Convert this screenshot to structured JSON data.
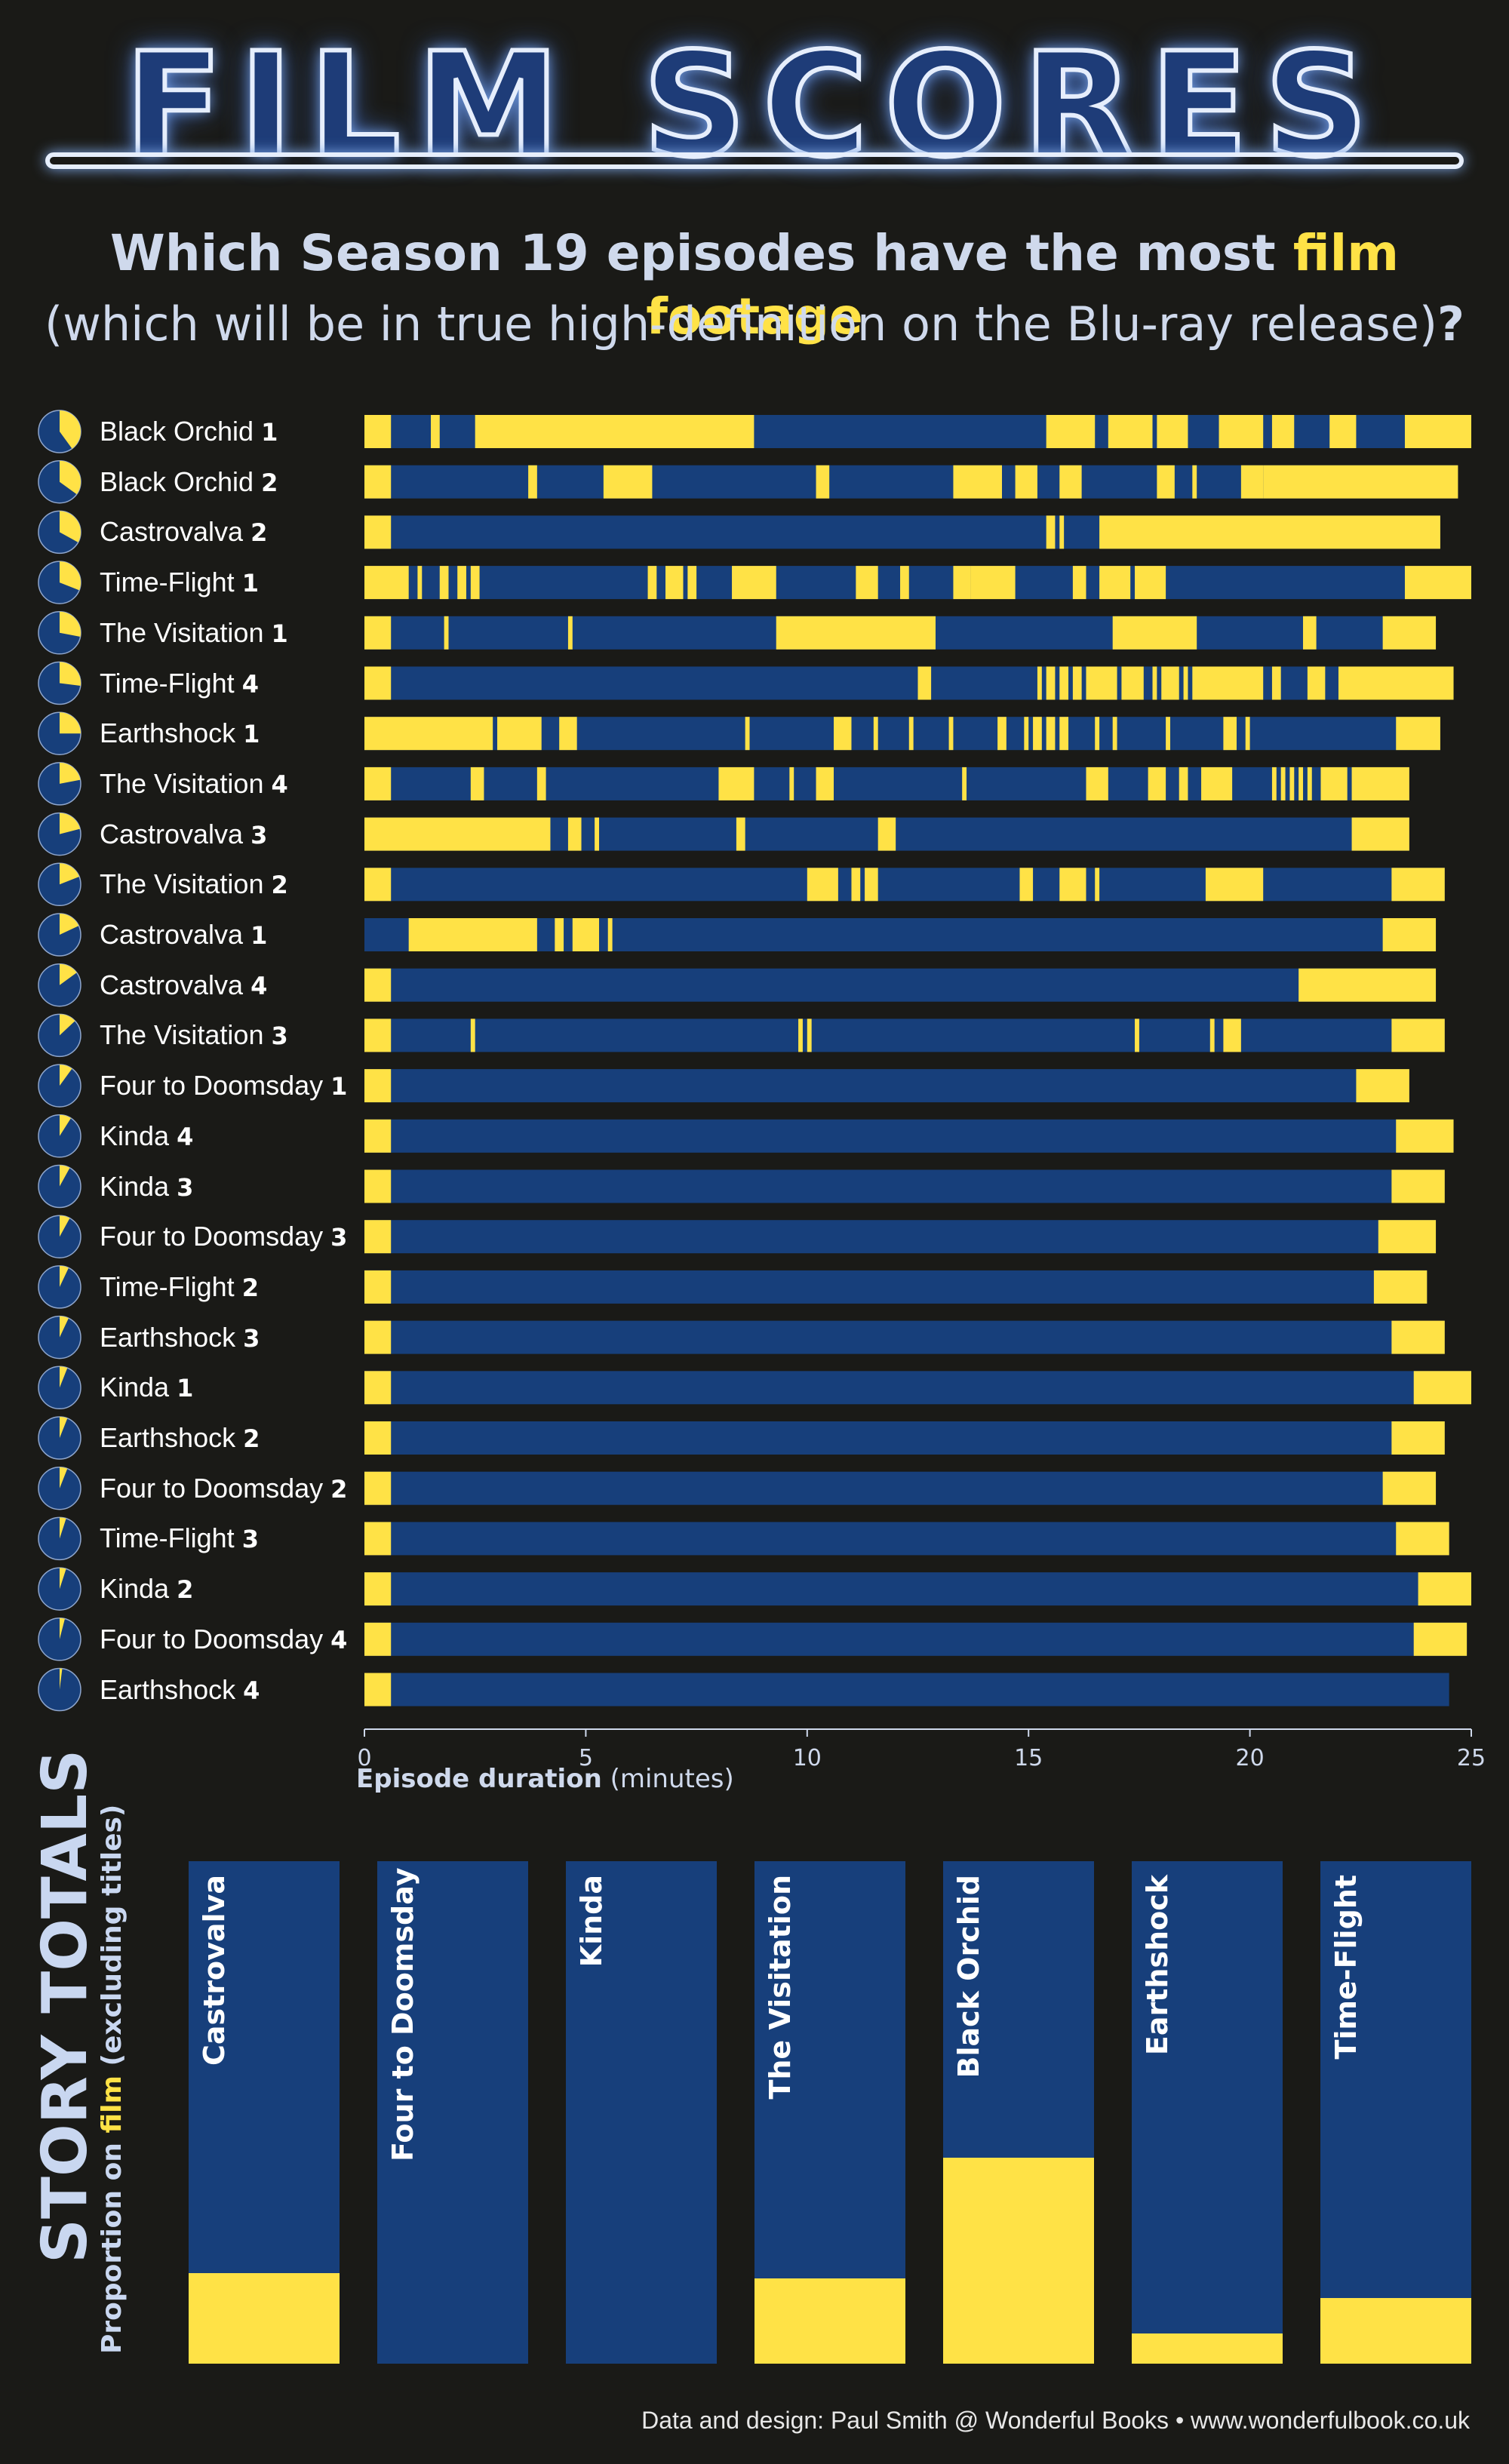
{
  "header": {
    "title": "FILM SCORES",
    "subtitle_main": "Which Season 19 episodes have the most ",
    "subtitle_highlight": "film footage",
    "subtitle_second": "(which will be in true high-definition on the Blu-ray release)",
    "subtitle_qmark": "?"
  },
  "colors": {
    "film": "#ffe246",
    "video": "#173f7b",
    "background": "#1a1a17",
    "text": "#ffffff"
  },
  "axis": {
    "title_bold": "Episode duration",
    "title_unit": "(minutes)"
  },
  "story_totals": {
    "title": "STORY TOTALS",
    "subtitle_prefix": "Proportion on ",
    "subtitle_highlight": "film",
    "subtitle_suffix": " (excluding titles)"
  },
  "footer": {
    "credits": "Data and design: Paul Smith @ Wonderful Books  •  www.wonderfulbook.co.uk"
  },
  "chart_data": [
    {
      "type": "bar",
      "title": "Which Season 19 episodes have the most film footage (which will be in true high-definition on the Blu-ray release)?",
      "xlabel": "Episode duration (minutes)",
      "xlim": [
        0,
        25
      ],
      "xticks": [
        0,
        5,
        10,
        15,
        20,
        25
      ],
      "grid": false,
      "episodes": [
        {
          "story": "Black Orchid",
          "part": "1",
          "duration": 25.0,
          "film_share": 0.4,
          "film": [
            [
              0,
              0.6
            ],
            [
              1.5,
              1.7
            ],
            [
              2.5,
              8.8
            ],
            [
              15.4,
              16.5
            ],
            [
              16.8,
              17.8
            ],
            [
              17.9,
              18.6
            ],
            [
              19.3,
              20.3
            ],
            [
              20.5,
              21
            ],
            [
              21.8,
              22.4
            ],
            [
              23.5,
              25
            ]
          ]
        },
        {
          "story": "Black Orchid",
          "part": "2",
          "duration": 24.7,
          "film_share": 0.35,
          "film": [
            [
              0,
              0.6
            ],
            [
              3.7,
              3.9
            ],
            [
              5.4,
              6.5
            ],
            [
              10.2,
              10.5
            ],
            [
              13.3,
              14.4
            ],
            [
              14.7,
              15.2
            ],
            [
              15.7,
              16.2
            ],
            [
              17.9,
              18.3
            ],
            [
              18.7,
              18.8
            ],
            [
              19.8,
              20.3
            ],
            [
              20.3,
              24.7
            ]
          ]
        },
        {
          "story": "Castrovalva",
          "part": "2",
          "duration": 24.3,
          "film_share": 0.33,
          "film": [
            [
              0,
              0.6
            ],
            [
              15.4,
              15.6
            ],
            [
              15.7,
              15.8
            ],
            [
              16.6,
              24.3
            ]
          ]
        },
        {
          "story": "Time-Flight",
          "part": "1",
          "duration": 25.0,
          "film_share": 0.31,
          "film": [
            [
              0,
              1.0
            ],
            [
              1.2,
              1.3
            ],
            [
              1.7,
              1.9
            ],
            [
              2.1,
              2.3
            ],
            [
              2.4,
              2.6
            ],
            [
              6.4,
              6.6
            ],
            [
              6.8,
              7.2
            ],
            [
              7.3,
              7.5
            ],
            [
              8.3,
              9.3
            ],
            [
              11.1,
              11.6
            ],
            [
              12.1,
              12.3
            ],
            [
              13.3,
              13.7
            ],
            [
              13.7,
              14.7
            ],
            [
              16.0,
              16.3
            ],
            [
              16.6,
              17.3
            ],
            [
              17.4,
              18.1
            ],
            [
              23.5,
              25
            ]
          ]
        },
        {
          "story": "The Visitation",
          "part": "1",
          "duration": 24.2,
          "film_share": 0.28,
          "film": [
            [
              0,
              0.6
            ],
            [
              1.8,
              1.9
            ],
            [
              4.6,
              4.7
            ],
            [
              9.3,
              12.9
            ],
            [
              16.9,
              18.8
            ],
            [
              21.2,
              21.5
            ],
            [
              23.0,
              24.2
            ]
          ]
        },
        {
          "story": "Time-Flight",
          "part": "4",
          "duration": 24.6,
          "film_share": 0.27,
          "film": [
            [
              0,
              0.6
            ],
            [
              12.5,
              12.8
            ],
            [
              15.2,
              15.3
            ],
            [
              15.4,
              15.6
            ],
            [
              15.7,
              15.9
            ],
            [
              16.0,
              16.2
            ],
            [
              16.3,
              17.0
            ],
            [
              17.1,
              17.6
            ],
            [
              17.8,
              17.9
            ],
            [
              18.0,
              18.4
            ],
            [
              18.5,
              18.6
            ],
            [
              18.7,
              20.3
            ],
            [
              20.5,
              20.7
            ],
            [
              21.3,
              21.7
            ],
            [
              22.0,
              24.6
            ]
          ]
        },
        {
          "story": "Earthshock",
          "part": "1",
          "duration": 24.3,
          "film_share": 0.25,
          "film": [
            [
              0,
              2.9
            ],
            [
              3.0,
              4.0
            ],
            [
              4.4,
              4.8
            ],
            [
              8.6,
              8.7
            ],
            [
              10.6,
              11.0
            ],
            [
              11.5,
              11.6
            ],
            [
              12.3,
              12.4
            ],
            [
              13.2,
              13.3
            ],
            [
              14.3,
              14.5
            ],
            [
              14.9,
              15.0
            ],
            [
              15.1,
              15.3
            ],
            [
              15.4,
              15.6
            ],
            [
              15.7,
              15.9
            ],
            [
              16.5,
              16.6
            ],
            [
              16.9,
              17.0
            ],
            [
              18.1,
              18.2
            ],
            [
              19.4,
              19.7
            ],
            [
              19.9,
              20.0
            ],
            [
              23.3,
              24.3
            ]
          ]
        },
        {
          "story": "The Visitation",
          "part": "4",
          "duration": 23.6,
          "film_share": 0.22,
          "film": [
            [
              0,
              0.6
            ],
            [
              2.4,
              2.7
            ],
            [
              3.9,
              4.1
            ],
            [
              8.0,
              8.8
            ],
            [
              9.6,
              9.7
            ],
            [
              10.2,
              10.6
            ],
            [
              13.5,
              13.6
            ],
            [
              16.3,
              16.8
            ],
            [
              17.7,
              18.1
            ],
            [
              18.4,
              18.6
            ],
            [
              18.9,
              19.6
            ],
            [
              20.5,
              20.6
            ],
            [
              20.7,
              20.8
            ],
            [
              20.9,
              21.0
            ],
            [
              21.1,
              21.2
            ],
            [
              21.3,
              21.4
            ],
            [
              21.6,
              22.2
            ],
            [
              22.3,
              23.6
            ]
          ]
        },
        {
          "story": "Castrovalva",
          "part": "3",
          "duration": 23.6,
          "film_share": 0.21,
          "film": [
            [
              0,
              4.2
            ],
            [
              4.6,
              4.9
            ],
            [
              5.2,
              5.3
            ],
            [
              8.4,
              8.6
            ],
            [
              11.6,
              12.0
            ],
            [
              22.3,
              23.6
            ]
          ]
        },
        {
          "story": "The Visitation",
          "part": "2",
          "duration": 24.4,
          "film_share": 0.19,
          "film": [
            [
              0,
              0.6
            ],
            [
              10.0,
              10.7
            ],
            [
              11.0,
              11.2
            ],
            [
              11.3,
              11.6
            ],
            [
              14.8,
              15.1
            ],
            [
              15.7,
              16.3
            ],
            [
              16.5,
              16.6
            ],
            [
              19.0,
              20.3
            ],
            [
              23.2,
              24.4
            ]
          ]
        },
        {
          "story": "Castrovalva",
          "part": "1",
          "duration": 24.2,
          "film_share": 0.18,
          "film": [
            [
              1.0,
              3.9
            ],
            [
              4.3,
              4.5
            ],
            [
              4.7,
              5.3
            ],
            [
              5.5,
              5.6
            ],
            [
              23.0,
              24.2
            ]
          ]
        },
        {
          "story": "Castrovalva",
          "part": "4",
          "duration": 24.2,
          "film_share": 0.15,
          "film": [
            [
              0,
              0.6
            ],
            [
              21.1,
              24.2
            ]
          ]
        },
        {
          "story": "The Visitation",
          "part": "3",
          "duration": 24.4,
          "film_share": 0.13,
          "film": [
            [
              0,
              0.6
            ],
            [
              2.4,
              2.5
            ],
            [
              9.8,
              9.9
            ],
            [
              10.0,
              10.1
            ],
            [
              17.4,
              17.5
            ],
            [
              19.1,
              19.2
            ],
            [
              19.4,
              19.8
            ],
            [
              23.2,
              24.4
            ]
          ]
        },
        {
          "story": "Four to Doomsday",
          "part": "1",
          "duration": 23.6,
          "film_share": 0.1,
          "film": [
            [
              0,
              0.6
            ],
            [
              22.4,
              23.6
            ]
          ]
        },
        {
          "story": "Kinda",
          "part": "4",
          "duration": 24.6,
          "film_share": 0.09,
          "film": [
            [
              0,
              0.6
            ],
            [
              23.3,
              24.6
            ]
          ]
        },
        {
          "story": "Kinda",
          "part": "3",
          "duration": 24.4,
          "film_share": 0.08,
          "film": [
            [
              0,
              0.6
            ],
            [
              23.2,
              24.4
            ]
          ]
        },
        {
          "story": "Four to Doomsday",
          "part": "3",
          "duration": 24.2,
          "film_share": 0.08,
          "film": [
            [
              0,
              0.6
            ],
            [
              22.9,
              24.2
            ]
          ]
        },
        {
          "story": "Time-Flight",
          "part": "2",
          "duration": 24.0,
          "film_share": 0.07,
          "film": [
            [
              0,
              0.6
            ],
            [
              22.8,
              24.0
            ]
          ]
        },
        {
          "story": "Earthshock",
          "part": "3",
          "duration": 24.4,
          "film_share": 0.07,
          "film": [
            [
              0,
              0.6
            ],
            [
              23.2,
              24.4
            ]
          ]
        },
        {
          "story": "Kinda",
          "part": "1",
          "duration": 25.0,
          "film_share": 0.06,
          "film": [
            [
              0,
              0.6
            ],
            [
              23.7,
              25.0
            ]
          ]
        },
        {
          "story": "Earthshock",
          "part": "2",
          "duration": 24.4,
          "film_share": 0.06,
          "film": [
            [
              0,
              0.6
            ],
            [
              23.2,
              24.4
            ]
          ]
        },
        {
          "story": "Four to Doomsday",
          "part": "2",
          "duration": 24.2,
          "film_share": 0.06,
          "film": [
            [
              0,
              0.6
            ],
            [
              23.0,
              24.2
            ]
          ]
        },
        {
          "story": "Time-Flight",
          "part": "3",
          "duration": 24.5,
          "film_share": 0.05,
          "film": [
            [
              0,
              0.6
            ],
            [
              23.3,
              24.5
            ]
          ]
        },
        {
          "story": "Kinda",
          "part": "2",
          "duration": 25.0,
          "film_share": 0.05,
          "film": [
            [
              0,
              0.6
            ],
            [
              23.8,
              25.0
            ]
          ]
        },
        {
          "story": "Four to Doomsday",
          "part": "4",
          "duration": 24.9,
          "film_share": 0.04,
          "film": [
            [
              0,
              0.6
            ],
            [
              23.7,
              24.9
            ]
          ]
        },
        {
          "story": "Earthshock",
          "part": "4",
          "duration": 24.5,
          "film_share": 0.02,
          "film": [
            [
              0,
              0.6
            ]
          ]
        }
      ]
    },
    {
      "type": "bar",
      "title": "STORY TOTALS",
      "ylabel": "Proportion on film (excluding titles)",
      "ylim": [
        0,
        1
      ],
      "categories": [
        "Castrovalva",
        "Four to Doomsday",
        "Kinda",
        "The Visitation",
        "Black Orchid",
        "Earthshock",
        "Time-Flight"
      ],
      "values": [
        0.18,
        0.0,
        0.0,
        0.17,
        0.41,
        0.06,
        0.13
      ]
    }
  ]
}
